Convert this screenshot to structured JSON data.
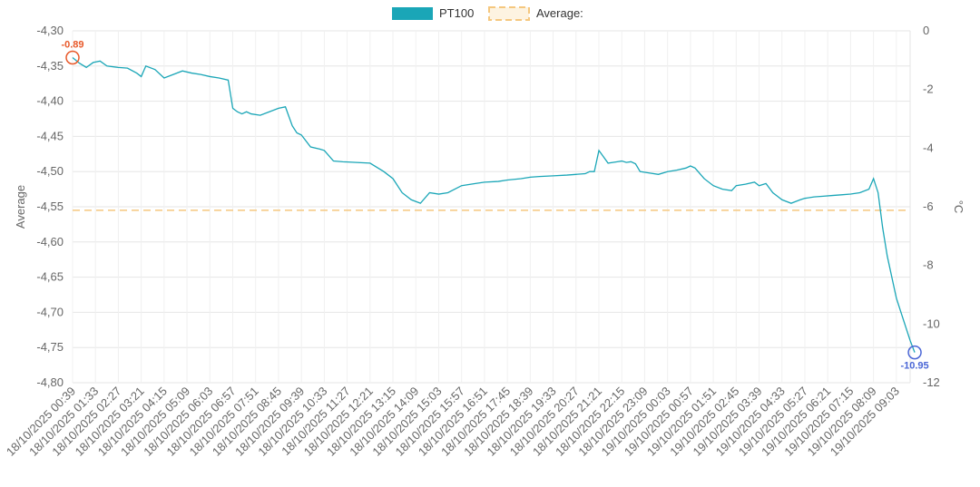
{
  "chart_data": {
    "type": "line",
    "legend": {
      "placement": "top-center",
      "entries": [
        {
          "label": "PT100",
          "color": "#1aa6b7",
          "style": "solid"
        },
        {
          "label": "Average:",
          "color": "#f5c77e",
          "style": "dashed"
        }
      ]
    },
    "y_left": {
      "label": "Average",
      "range": [
        -4.8,
        -4.3
      ],
      "ticks": [
        "-4,30",
        "-4,35",
        "-4,40",
        "-4,45",
        "-4,50",
        "-4,55",
        "-4,60",
        "-4,65",
        "-4,70",
        "-4,75",
        "-4,80"
      ]
    },
    "y_right": {
      "label": "°C",
      "range": [
        -12,
        0
      ],
      "ticks": [
        "0",
        "-2",
        "-4",
        "-6",
        "-8",
        "-10",
        "-12"
      ]
    },
    "x_labels": [
      "18/10/2025 00:39",
      "18/10/2025 01:33",
      "18/10/2025 02:27",
      "18/10/2025 03:21",
      "18/10/2025 04:15",
      "18/10/2025 05:09",
      "18/10/2025 06:03",
      "18/10/2025 06:57",
      "18/10/2025 07:51",
      "18/10/2025 08:45",
      "18/10/2025 09:39",
      "18/10/2025 10:33",
      "18/10/2025 11:27",
      "18/10/2025 12:21",
      "18/10/2025 13:15",
      "18/10/2025 14:09",
      "18/10/2025 15:03",
      "18/10/2025 15:57",
      "18/10/2025 16:51",
      "18/10/2025 17:45",
      "18/10/2025 18:39",
      "18/10/2025 19:33",
      "18/10/2025 20:27",
      "18/10/2025 21:21",
      "18/10/2025 22:15",
      "18/10/2025 23:09",
      "19/10/2025 00:03",
      "19/10/2025 00:57",
      "19/10/2025 01:51",
      "19/10/2025 02:45",
      "19/10/2025 03:39",
      "19/10/2025 04:33",
      "19/10/2025 05:27",
      "19/10/2025 06:21",
      "19/10/2025 07:15",
      "19/10/2025 08:09",
      "19/10/2025 09:03"
    ],
    "grid": true,
    "average_line": -4.555,
    "series": [
      {
        "name": "PT100",
        "axis": "y_left",
        "color": "#1aa6b7",
        "x": [
          0,
          0.3,
          0.6,
          0.9,
          1.2,
          1.5,
          2,
          2.4,
          2.8,
          3,
          3.2,
          3.6,
          4,
          4.4,
          4.8,
          5.2,
          5.6,
          6,
          6.4,
          6.8,
          7,
          7.2,
          7.4,
          7.6,
          7.8,
          8.2,
          8.6,
          9,
          9.3,
          9.6,
          9.8,
          10,
          10.4,
          10.8,
          11,
          11.4,
          11.8,
          12.4,
          13,
          13.6,
          14,
          14.4,
          14.8,
          15.2,
          15.6,
          16,
          16.4,
          17,
          17.6,
          18,
          18.6,
          19,
          19.6,
          20,
          20.4,
          21,
          21.6,
          22,
          22.4,
          22.6,
          22.8,
          23,
          23.4,
          23.8,
          24,
          24.2,
          24.4,
          24.6,
          24.8,
          25.2,
          25.6,
          26,
          26.4,
          26.8,
          27,
          27.2,
          27.6,
          28,
          28.4,
          28.8,
          29,
          29.4,
          29.8,
          30,
          30.3,
          30.6,
          30.8,
          31,
          31.4,
          31.8,
          32,
          32.4,
          32.8,
          33.2,
          33.6,
          34,
          34.4,
          34.8,
          35,
          35.2,
          35.4,
          35.6,
          35.8,
          36,
          36.2,
          36.4,
          36.6,
          36.8
        ],
        "y": [
          -4.338,
          -4.346,
          -4.352,
          -4.345,
          -4.343,
          -4.35,
          -4.352,
          -4.353,
          -4.36,
          -4.365,
          -4.35,
          -4.355,
          -4.367,
          -4.362,
          -4.357,
          -4.36,
          -4.362,
          -4.365,
          -4.367,
          -4.37,
          -4.41,
          -4.415,
          -4.418,
          -4.415,
          -4.418,
          -4.42,
          -4.415,
          -4.41,
          -4.408,
          -4.435,
          -4.445,
          -4.448,
          -4.465,
          -4.468,
          -4.47,
          -4.485,
          -4.486,
          -4.487,
          -4.488,
          -4.5,
          -4.51,
          -4.53,
          -4.54,
          -4.545,
          -4.53,
          -4.532,
          -4.53,
          -4.52,
          -4.517,
          -4.515,
          -4.514,
          -4.512,
          -4.51,
          -4.508,
          -4.507,
          -4.506,
          -4.505,
          -4.504,
          -4.503,
          -4.5,
          -4.5,
          -4.47,
          -4.488,
          -4.486,
          -4.485,
          -4.487,
          -4.486,
          -4.489,
          -4.5,
          -4.502,
          -4.504,
          -4.5,
          -4.498,
          -4.495,
          -4.492,
          -4.495,
          -4.51,
          -4.52,
          -4.525,
          -4.527,
          -4.52,
          -4.518,
          -4.515,
          -4.52,
          -4.517,
          -4.53,
          -4.535,
          -4.54,
          -4.545,
          -4.54,
          -4.538,
          -4.536,
          -4.535,
          -4.534,
          -4.533,
          -4.532,
          -4.53,
          -4.525,
          -4.51,
          -4.53,
          -4.58,
          -4.62,
          -4.65,
          -4.68,
          -4.7,
          -4.72,
          -4.74,
          -4.757
        ]
      }
    ],
    "annotations": [
      {
        "text": "-0.89",
        "color": "#e8592a",
        "at": "first"
      },
      {
        "text": "-10.95",
        "color": "#4a66d6",
        "at": "last"
      }
    ]
  }
}
